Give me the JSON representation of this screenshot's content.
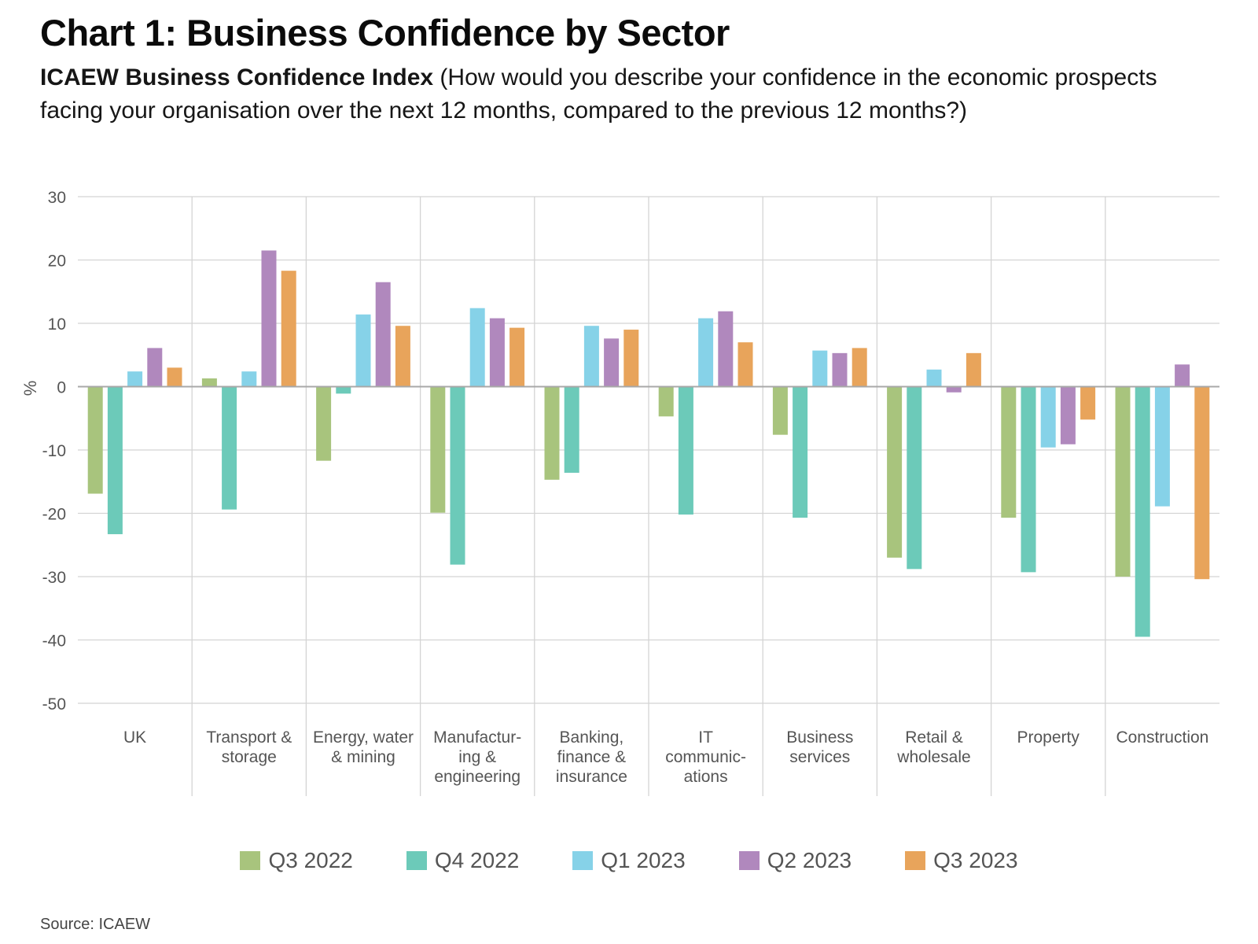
{
  "header": {
    "title": "Chart 1: Business Confidence by Sector",
    "subtitle_bold": "ICAEW Business Confidence Index",
    "subtitle_rest": " (How would you describe your confidence in the economic prospects facing your organisation over the next 12 months, compared to the previous 12 months?)"
  },
  "footer": {
    "source": "Source: ICAEW"
  },
  "chart_data": {
    "type": "bar",
    "title": "Chart 1: Business Confidence by Sector",
    "subtitle": "ICAEW Business Confidence Index (How would you describe your confidence in the economic prospects facing your organisation over the next 12 months, compared to the previous 12 months?)",
    "xlabel": "",
    "ylabel": "%",
    "ylim": [
      -50,
      30
    ],
    "yticks": [
      30,
      20,
      10,
      0,
      -10,
      -20,
      -30,
      -40,
      -50
    ],
    "grid": true,
    "legend_position": "bottom",
    "categories": [
      [
        "UK"
      ],
      [
        "Transport &",
        "storage"
      ],
      [
        "Energy, water",
        "& mining"
      ],
      [
        "Manufactur-",
        "ing &",
        "engineering"
      ],
      [
        "Banking,",
        "finance &",
        "insurance"
      ],
      [
        "IT",
        "communic-",
        "ations"
      ],
      [
        "Business",
        "services"
      ],
      [
        "Retail &",
        "wholesale"
      ],
      [
        "Property"
      ],
      [
        "Construction"
      ]
    ],
    "series": [
      {
        "name": "Q3 2022",
        "color": "#a8c47d",
        "values": [
          -16.9,
          1.3,
          -11.7,
          -19.9,
          -14.7,
          -4.7,
          -7.6,
          -27.0,
          -20.7,
          -30.0
        ]
      },
      {
        "name": "Q4 2022",
        "color": "#6ccab9",
        "values": [
          -23.3,
          -19.4,
          -1.1,
          -28.1,
          -13.6,
          -20.2,
          -20.7,
          -28.8,
          -29.3,
          -39.5
        ]
      },
      {
        "name": "Q1 2023",
        "color": "#86d2e8",
        "values": [
          2.4,
          2.4,
          11.4,
          12.4,
          9.6,
          10.8,
          5.7,
          2.7,
          -9.6,
          -18.9
        ]
      },
      {
        "name": "Q2 2023",
        "color": "#b088bd",
        "values": [
          6.1,
          21.5,
          16.5,
          10.8,
          7.6,
          11.9,
          5.3,
          -0.9,
          -9.1,
          3.5
        ]
      },
      {
        "name": "Q3 2023",
        "color": "#e8a45b",
        "values": [
          3.0,
          18.3,
          9.6,
          9.3,
          9.0,
          7.0,
          6.1,
          5.3,
          -5.2,
          -30.4
        ]
      }
    ]
  }
}
